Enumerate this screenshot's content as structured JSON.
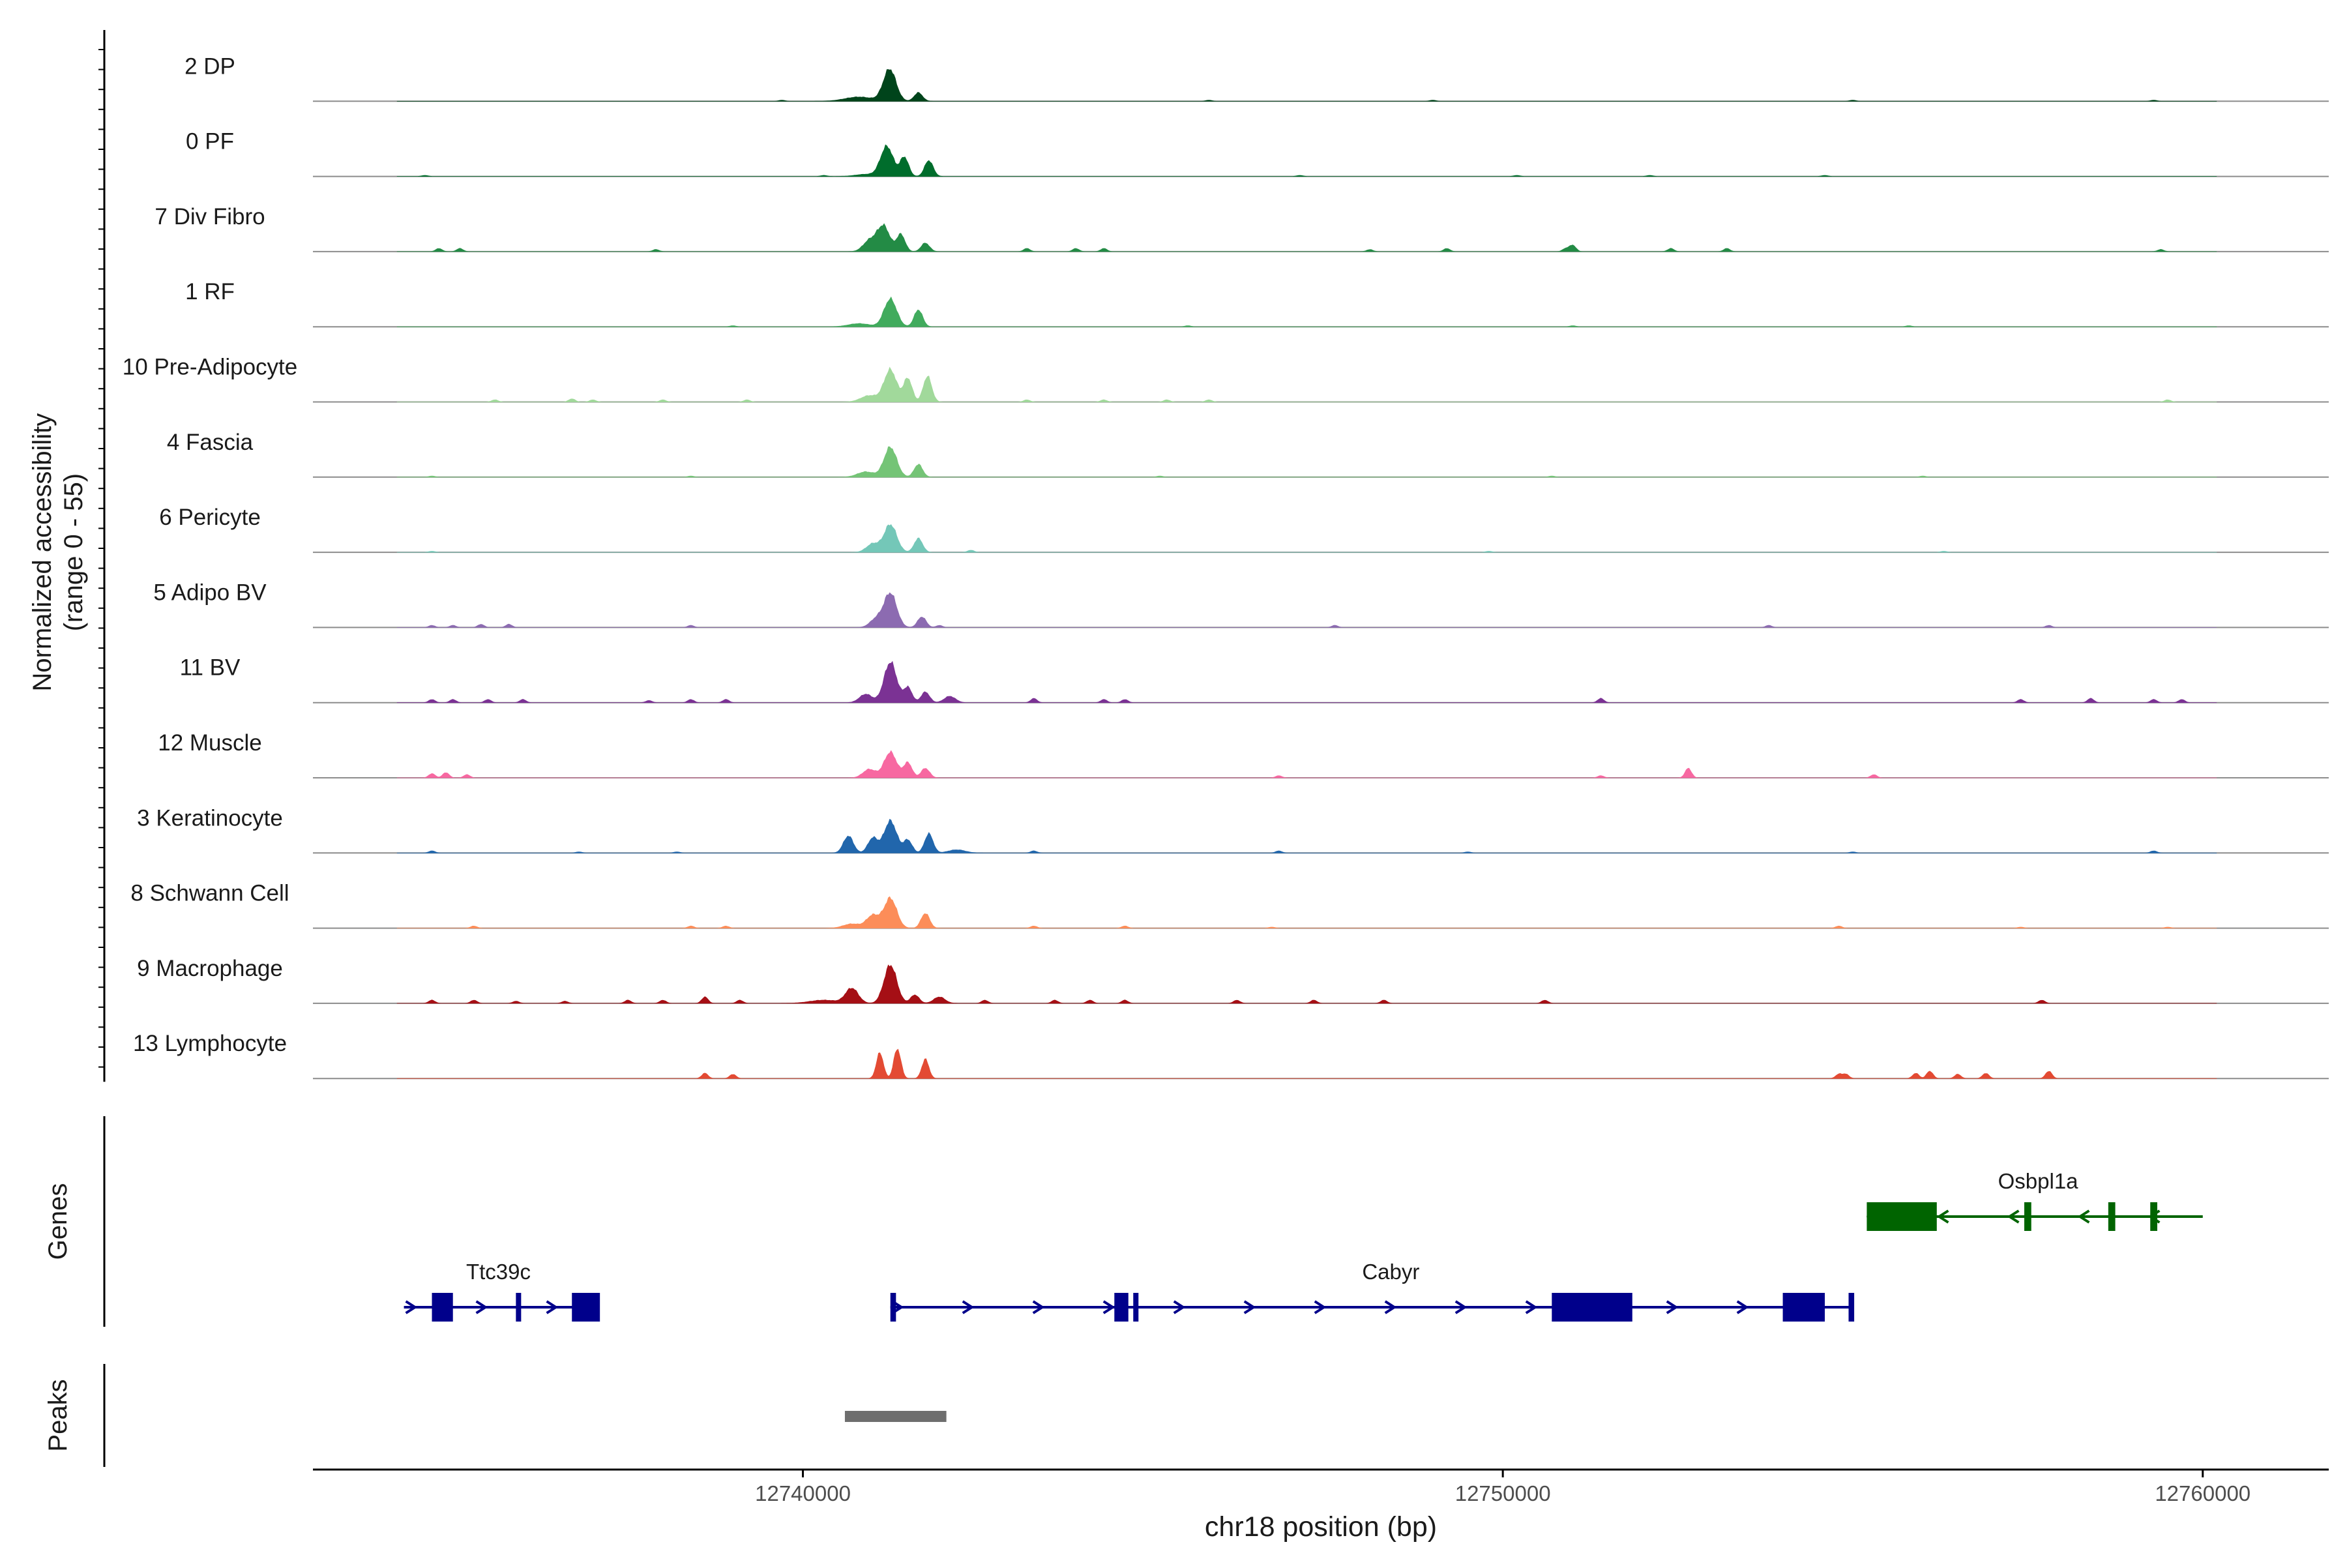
{
  "chart_data": {
    "type": "area",
    "subtype": "genome-coverage-track",
    "xlabel": "chr18 position (bp)",
    "ylabel_line1": "Normalized accessibility",
    "ylabel_line2": "(range 0 - 55)",
    "y_range": [
      0,
      55
    ],
    "x_range": [
      12733000,
      12761800
    ],
    "x_ticks": [
      12740000,
      12750000,
      12760000
    ],
    "x_tick_labels": [
      "12740000",
      "12750000",
      "12760000"
    ],
    "tracks": [
      {
        "name": "2 DP",
        "color": "#00441b",
        "peaks": [
          [
            12741240,
            30,
            90
          ],
          [
            12741650,
            8,
            60
          ],
          [
            12740800,
            4,
            200
          ]
        ],
        "noise": [
          [
            12739700,
            1
          ],
          [
            12745800,
            1
          ],
          [
            12749000,
            1
          ],
          [
            12755000,
            1
          ],
          [
            12759300,
            1
          ]
        ]
      },
      {
        "name": "0 PF",
        "color": "#006d2c",
        "peaks": [
          [
            12741200,
            28,
            90
          ],
          [
            12741450,
            18,
            60
          ],
          [
            12741800,
            15,
            60
          ],
          [
            12740900,
            2,
            150
          ]
        ],
        "noise": [
          [
            12734600,
            1
          ],
          [
            12740300,
            1
          ],
          [
            12747100,
            1
          ],
          [
            12750200,
            1
          ],
          [
            12752100,
            1
          ],
          [
            12754600,
            1
          ]
        ]
      },
      {
        "name": "7 Div Fibro",
        "color": "#238b45",
        "peaks": [
          [
            12741150,
            24,
            90
          ],
          [
            12741400,
            16,
            60
          ],
          [
            12741750,
            8,
            60
          ],
          [
            12740950,
            10,
            90
          ]
        ],
        "noise": [
          [
            12734800,
            3
          ],
          [
            12735100,
            3
          ],
          [
            12737900,
            2
          ],
          [
            12743200,
            3
          ],
          [
            12743900,
            3
          ],
          [
            12744300,
            3
          ],
          [
            12748100,
            2
          ],
          [
            12749200,
            3
          ],
          [
            12750900,
            3
          ],
          [
            12751000,
            6
          ],
          [
            12752400,
            3
          ],
          [
            12753200,
            3
          ],
          [
            12759400,
            2
          ]
        ]
      },
      {
        "name": "1 RF",
        "color": "#41ab5d",
        "peaks": [
          [
            12741250,
            26,
            90
          ],
          [
            12741650,
            16,
            60
          ],
          [
            12740800,
            3,
            150
          ]
        ],
        "noise": [
          [
            12739000,
            1
          ],
          [
            12745500,
            1
          ],
          [
            12751000,
            1
          ],
          [
            12755800,
            1
          ]
        ]
      },
      {
        "name": "10 Pre-Adipocyte",
        "color": "#a1d99b",
        "peaks": [
          [
            12741250,
            30,
            90
          ],
          [
            12741500,
            22,
            60
          ],
          [
            12741780,
            24,
            60
          ],
          [
            12740950,
            6,
            120
          ]
        ],
        "noise": [
          [
            12735600,
            2
          ],
          [
            12736700,
            3
          ],
          [
            12737000,
            2
          ],
          [
            12738000,
            2
          ],
          [
            12739200,
            2
          ],
          [
            12743200,
            2
          ],
          [
            12744300,
            2
          ],
          [
            12745200,
            2
          ],
          [
            12745800,
            2
          ],
          [
            12759500,
            2
          ]
        ]
      },
      {
        "name": "4 Fascia",
        "color": "#74c476",
        "peaks": [
          [
            12741250,
            28,
            90
          ],
          [
            12741650,
            12,
            60
          ],
          [
            12740900,
            5,
            120
          ]
        ],
        "noise": [
          [
            12734700,
            1
          ],
          [
            12738400,
            1
          ],
          [
            12745100,
            1
          ],
          [
            12750700,
            1
          ],
          [
            12756000,
            1
          ]
        ]
      },
      {
        "name": "6 Pericyte",
        "color": "#74c7b8",
        "peaks": [
          [
            12741250,
            26,
            90
          ],
          [
            12741650,
            13,
            60
          ],
          [
            12741000,
            8,
            90
          ]
        ],
        "noise": [
          [
            12734700,
            1
          ],
          [
            12742400,
            2
          ],
          [
            12749800,
            1
          ],
          [
            12756300,
            1
          ]
        ]
      },
      {
        "name": "5 Adipo BV",
        "color": "#8c6bb1",
        "peaks": [
          [
            12741250,
            32,
            90
          ],
          [
            12741700,
            10,
            60
          ],
          [
            12741050,
            8,
            90
          ]
        ],
        "noise": [
          [
            12734700,
            2
          ],
          [
            12735000,
            2
          ],
          [
            12735400,
            3
          ],
          [
            12735800,
            3
          ],
          [
            12738400,
            2
          ],
          [
            12741950,
            2
          ],
          [
            12747600,
            2
          ],
          [
            12753800,
            2
          ],
          [
            12757800,
            2
          ]
        ]
      },
      {
        "name": "11 BV",
        "color": "#7b3294",
        "peaks": [
          [
            12741250,
            38,
            90
          ],
          [
            12741500,
            14,
            60
          ],
          [
            12741750,
            10,
            60
          ],
          [
            12740900,
            8,
            90
          ],
          [
            12742100,
            6,
            80
          ]
        ],
        "noise": [
          [
            12734700,
            3
          ],
          [
            12735000,
            3
          ],
          [
            12735500,
            3
          ],
          [
            12736000,
            3
          ],
          [
            12737800,
            2
          ],
          [
            12738400,
            3
          ],
          [
            12738900,
            3
          ],
          [
            12743300,
            4
          ],
          [
            12744300,
            3
          ],
          [
            12744600,
            3
          ],
          [
            12751400,
            4
          ],
          [
            12757400,
            3
          ],
          [
            12758400,
            4
          ],
          [
            12759300,
            3
          ],
          [
            12759700,
            3
          ]
        ]
      },
      {
        "name": "12 Muscle",
        "color": "#f768a1",
        "peaks": [
          [
            12741250,
            24,
            90
          ],
          [
            12741500,
            14,
            60
          ],
          [
            12741750,
            9,
            60
          ],
          [
            12740950,
            8,
            90
          ]
        ],
        "noise": [
          [
            12734700,
            4
          ],
          [
            12734900,
            5
          ],
          [
            12735200,
            3
          ],
          [
            12746800,
            2
          ],
          [
            12751400,
            2
          ],
          [
            12752650,
            9
          ],
          [
            12755300,
            3
          ]
        ]
      },
      {
        "name": "3 Keratinocyte",
        "color": "#2166ac",
        "peaks": [
          [
            12741250,
            30,
            90
          ],
          [
            12740650,
            16,
            70
          ],
          [
            12741000,
            14,
            70
          ],
          [
            12741800,
            18,
            60
          ],
          [
            12741500,
            12,
            60
          ],
          [
            12742200,
            3,
            120
          ]
        ],
        "noise": [
          [
            12734700,
            2
          ],
          [
            12736800,
            1
          ],
          [
            12738200,
            1
          ],
          [
            12743300,
            2
          ],
          [
            12746800,
            2
          ],
          [
            12749500,
            1
          ],
          [
            12755000,
            1
          ],
          [
            12759300,
            2
          ]
        ]
      },
      {
        "name": "8 Schwann Cell",
        "color": "#fc8d59",
        "peaks": [
          [
            12741250,
            28,
            90
          ],
          [
            12741750,
            14,
            60
          ],
          [
            12741000,
            12,
            90
          ],
          [
            12740700,
            4,
            120
          ]
        ],
        "noise": [
          [
            12735300,
            2
          ],
          [
            12738400,
            2
          ],
          [
            12738900,
            2
          ],
          [
            12743300,
            2
          ],
          [
            12744600,
            2
          ],
          [
            12746700,
            1
          ],
          [
            12754800,
            2
          ],
          [
            12757400,
            1
          ],
          [
            12759500,
            1
          ]
        ]
      },
      {
        "name": "9 Macrophage",
        "color": "#a50f15",
        "peaks": [
          [
            12741250,
            36,
            90
          ],
          [
            12740700,
            14,
            90
          ],
          [
            12741600,
            8,
            60
          ],
          [
            12741950,
            6,
            80
          ],
          [
            12740300,
            3,
            200
          ]
        ],
        "noise": [
          [
            12734700,
            3
          ],
          [
            12735300,
            3
          ],
          [
            12735900,
            2
          ],
          [
            12736600,
            2
          ],
          [
            12737500,
            3
          ],
          [
            12738000,
            3
          ],
          [
            12738600,
            6
          ],
          [
            12739100,
            3
          ],
          [
            12742600,
            3
          ],
          [
            12743600,
            3
          ],
          [
            12744100,
            3
          ],
          [
            12744600,
            3
          ],
          [
            12746200,
            3
          ],
          [
            12747300,
            3
          ],
          [
            12748300,
            3
          ],
          [
            12750600,
            3
          ],
          [
            12757700,
            3
          ]
        ]
      },
      {
        "name": "13 Lymphocyte",
        "color": "#e34a33",
        "peaks": [
          [
            12741100,
            24,
            50
          ],
          [
            12741350,
            28,
            50
          ],
          [
            12741750,
            18,
            50
          ]
        ],
        "noise": [
          [
            12738600,
            5
          ],
          [
            12739000,
            4
          ],
          [
            12754800,
            4
          ],
          [
            12754900,
            4
          ],
          [
            12755900,
            5
          ],
          [
            12756100,
            7
          ],
          [
            12756500,
            4
          ],
          [
            12756900,
            5
          ],
          [
            12757800,
            7
          ]
        ]
      }
    ],
    "genes": {
      "track_label": "Genes",
      "items": [
        {
          "name": "Ttc39c",
          "strand": "+",
          "color": "#00008b",
          "start": 12734300,
          "end": 12737000,
          "exons": [
            [
              12734700,
              12735000,
              "thick"
            ],
            [
              12735900,
              12735950,
              "thin"
            ],
            [
              12736700,
              12737100,
              "thick"
            ]
          ]
        },
        {
          "name": "Cabyr",
          "strand": "+",
          "color": "#00008b",
          "start": 12741250,
          "end": 12755000,
          "exons": [
            [
              12741250,
              12741330,
              "thin"
            ],
            [
              12744450,
              12744650,
              "thick"
            ],
            [
              12744720,
              12744790,
              "thin"
            ],
            [
              12750700,
              12751850,
              "thick"
            ],
            [
              12754000,
              12754600,
              "thick"
            ],
            [
              12754940,
              12755020,
              "thin"
            ]
          ]
        },
        {
          "name": "Osbpl1a",
          "strand": "-",
          "color": "#006400",
          "start": 12755200,
          "end": 12760000,
          "exons": [
            [
              12755200,
              12756200,
              "thick"
            ],
            [
              12757450,
              12757550,
              "thin"
            ],
            [
              12758650,
              12758750,
              "thin"
            ],
            [
              12759250,
              12759350,
              "thin"
            ]
          ]
        }
      ]
    },
    "peaks_track": {
      "track_label": "Peaks",
      "color": "#6e6e6e",
      "regions": [
        [
          12740600,
          12742050
        ]
      ]
    }
  }
}
